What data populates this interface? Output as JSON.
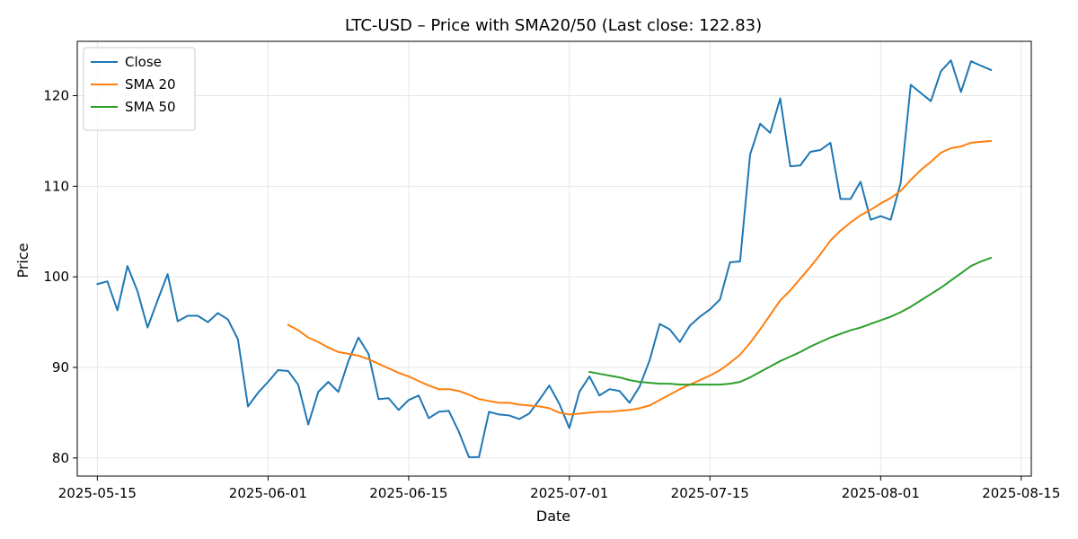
{
  "chart_data": {
    "type": "line",
    "title": "LTC-USD – Price with SMA20/50 (Last close: 122.83)",
    "xlabel": "Date",
    "ylabel": "Price",
    "xlim": [
      "2025-05-13",
      "2025-08-16"
    ],
    "ylim": [
      78,
      126
    ],
    "x_ticks": [
      "2025-05-15",
      "2025-06-01",
      "2025-06-15",
      "2025-07-01",
      "2025-07-15",
      "2025-08-01",
      "2025-08-15"
    ],
    "y_ticks": [
      80,
      90,
      100,
      110,
      120
    ],
    "grid": true,
    "legend_position": "top-left",
    "start_date": "2025-05-15",
    "series": [
      {
        "name": "Close",
        "color": "#1f77b4",
        "values": [
          99.2,
          99.5,
          96.3,
          101.2,
          98.4,
          94.4,
          97.4,
          100.3,
          95.1,
          95.7,
          95.7,
          95.0,
          96.0,
          95.3,
          93.1,
          85.7,
          87.2,
          88.4,
          89.7,
          89.6,
          88.1,
          83.7,
          87.3,
          88.4,
          87.3,
          90.7,
          93.3,
          91.5,
          86.5,
          86.6,
          85.3,
          86.4,
          86.9,
          84.4,
          85.1,
          85.2,
          82.9,
          80.1,
          80.1,
          85.1,
          84.8,
          84.7,
          84.3,
          84.9,
          86.4,
          88.0,
          86.0,
          83.3,
          87.3,
          89.0,
          86.9,
          87.6,
          87.4,
          86.1,
          87.9,
          90.8,
          94.8,
          94.2,
          92.8,
          94.6,
          95.6,
          96.4,
          97.5,
          101.6,
          101.7,
          113.5,
          116.9,
          115.9,
          119.7,
          112.2,
          112.3,
          113.8,
          114.0,
          114.8,
          108.6,
          108.6,
          110.5,
          106.3,
          106.7,
          106.3,
          110.4,
          121.2,
          120.3,
          119.4,
          122.7,
          123.9,
          120.4,
          123.8,
          123.3,
          122.83
        ]
      },
      {
        "name": "SMA 20",
        "color": "#ff7f0e",
        "start_index": 19,
        "values": [
          94.7,
          94.1,
          93.3,
          92.8,
          92.2,
          91.7,
          91.5,
          91.3,
          90.9,
          90.4,
          89.9,
          89.4,
          89.0,
          88.5,
          88.0,
          87.6,
          87.6,
          87.4,
          87.0,
          86.5,
          86.3,
          86.1,
          86.1,
          85.9,
          85.8,
          85.7,
          85.5,
          85.0,
          84.8,
          84.9,
          85.0,
          85.1,
          85.1,
          85.2,
          85.3,
          85.5,
          85.8,
          86.4,
          87.0,
          87.6,
          88.1,
          88.6,
          89.1,
          89.7,
          90.5,
          91.4,
          92.7,
          94.2,
          95.8,
          97.4,
          98.5,
          99.8,
          101.1,
          102.5,
          104.0,
          105.1,
          106.0,
          106.8,
          107.4,
          108.1,
          108.7,
          109.5,
          110.7,
          111.8,
          112.7,
          113.7,
          114.2,
          114.4,
          114.8,
          114.9,
          115.0
        ]
      },
      {
        "name": "SMA 50",
        "color": "#2ca02c",
        "start_index": 49,
        "values": [
          89.5,
          89.3,
          89.1,
          88.9,
          88.6,
          88.4,
          88.3,
          88.2,
          88.2,
          88.1,
          88.1,
          88.1,
          88.1,
          88.1,
          88.2,
          88.4,
          88.9,
          89.5,
          90.1,
          90.7,
          91.2,
          91.7,
          92.3,
          92.8,
          93.3,
          93.7,
          94.1,
          94.4,
          94.8,
          95.2,
          95.6,
          96.1,
          96.7,
          97.4,
          98.1,
          98.8,
          99.6,
          100.4,
          101.2,
          101.7,
          102.1
        ]
      }
    ]
  }
}
